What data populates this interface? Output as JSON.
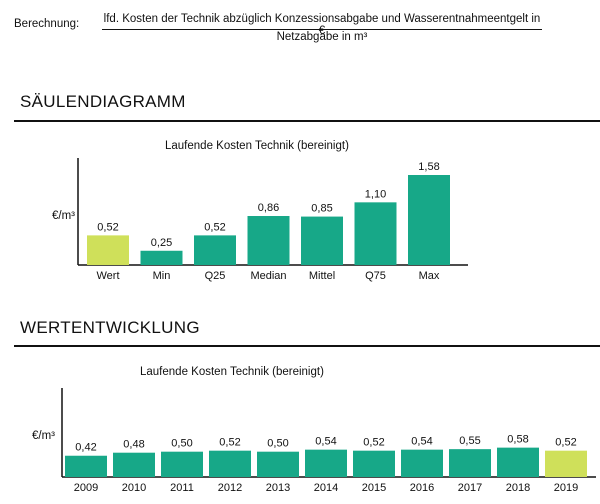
{
  "header": {
    "calc_label": "Berechnung:",
    "formula_numerator": "lfd. Kosten der Technik abzüglich Konzessionsabgabe und Wasserentnahmeentgelt in €",
    "formula_denominator": "Netzabgabe in m³"
  },
  "sections": {
    "bar_title": "SÄULENDIAGRAMM",
    "trend_title": "WERTENTWICKLUNG"
  },
  "colors": {
    "highlight": "#cfe05a",
    "normal": "#17a888",
    "axis": "#111111"
  },
  "chart_data": [
    {
      "type": "bar",
      "title": "Laufende Kosten Technik (bereinigt)",
      "ylabel": "€/m³",
      "categories": [
        "Wert",
        "Min",
        "Q25",
        "Median",
        "Mittel",
        "Q75",
        "Max"
      ],
      "values": [
        0.52,
        0.25,
        0.52,
        0.86,
        0.85,
        1.1,
        1.58
      ],
      "value_labels": [
        "0,52",
        "0,25",
        "0,52",
        "0,86",
        "0,85",
        "1,10",
        "1,58"
      ],
      "highlight_index": 0,
      "ylim": [
        0,
        1.58
      ]
    },
    {
      "type": "bar",
      "title": "Laufende Kosten Technik (bereinigt)",
      "ylabel": "€/m³",
      "categories": [
        "2009",
        "2010",
        "2011",
        "2012",
        "2013",
        "2014",
        "2015",
        "2016",
        "2017",
        "2018",
        "2019"
      ],
      "values": [
        0.42,
        0.48,
        0.5,
        0.52,
        0.5,
        0.54,
        0.52,
        0.54,
        0.55,
        0.58,
        0.52
      ],
      "value_labels": [
        "0,42",
        "0,48",
        "0,50",
        "0,52",
        "0,50",
        "0,54",
        "0,52",
        "0,54",
        "0,55",
        "0,58",
        "0,52"
      ],
      "highlight_index": 10,
      "ylim": [
        0,
        1.58
      ]
    }
  ]
}
